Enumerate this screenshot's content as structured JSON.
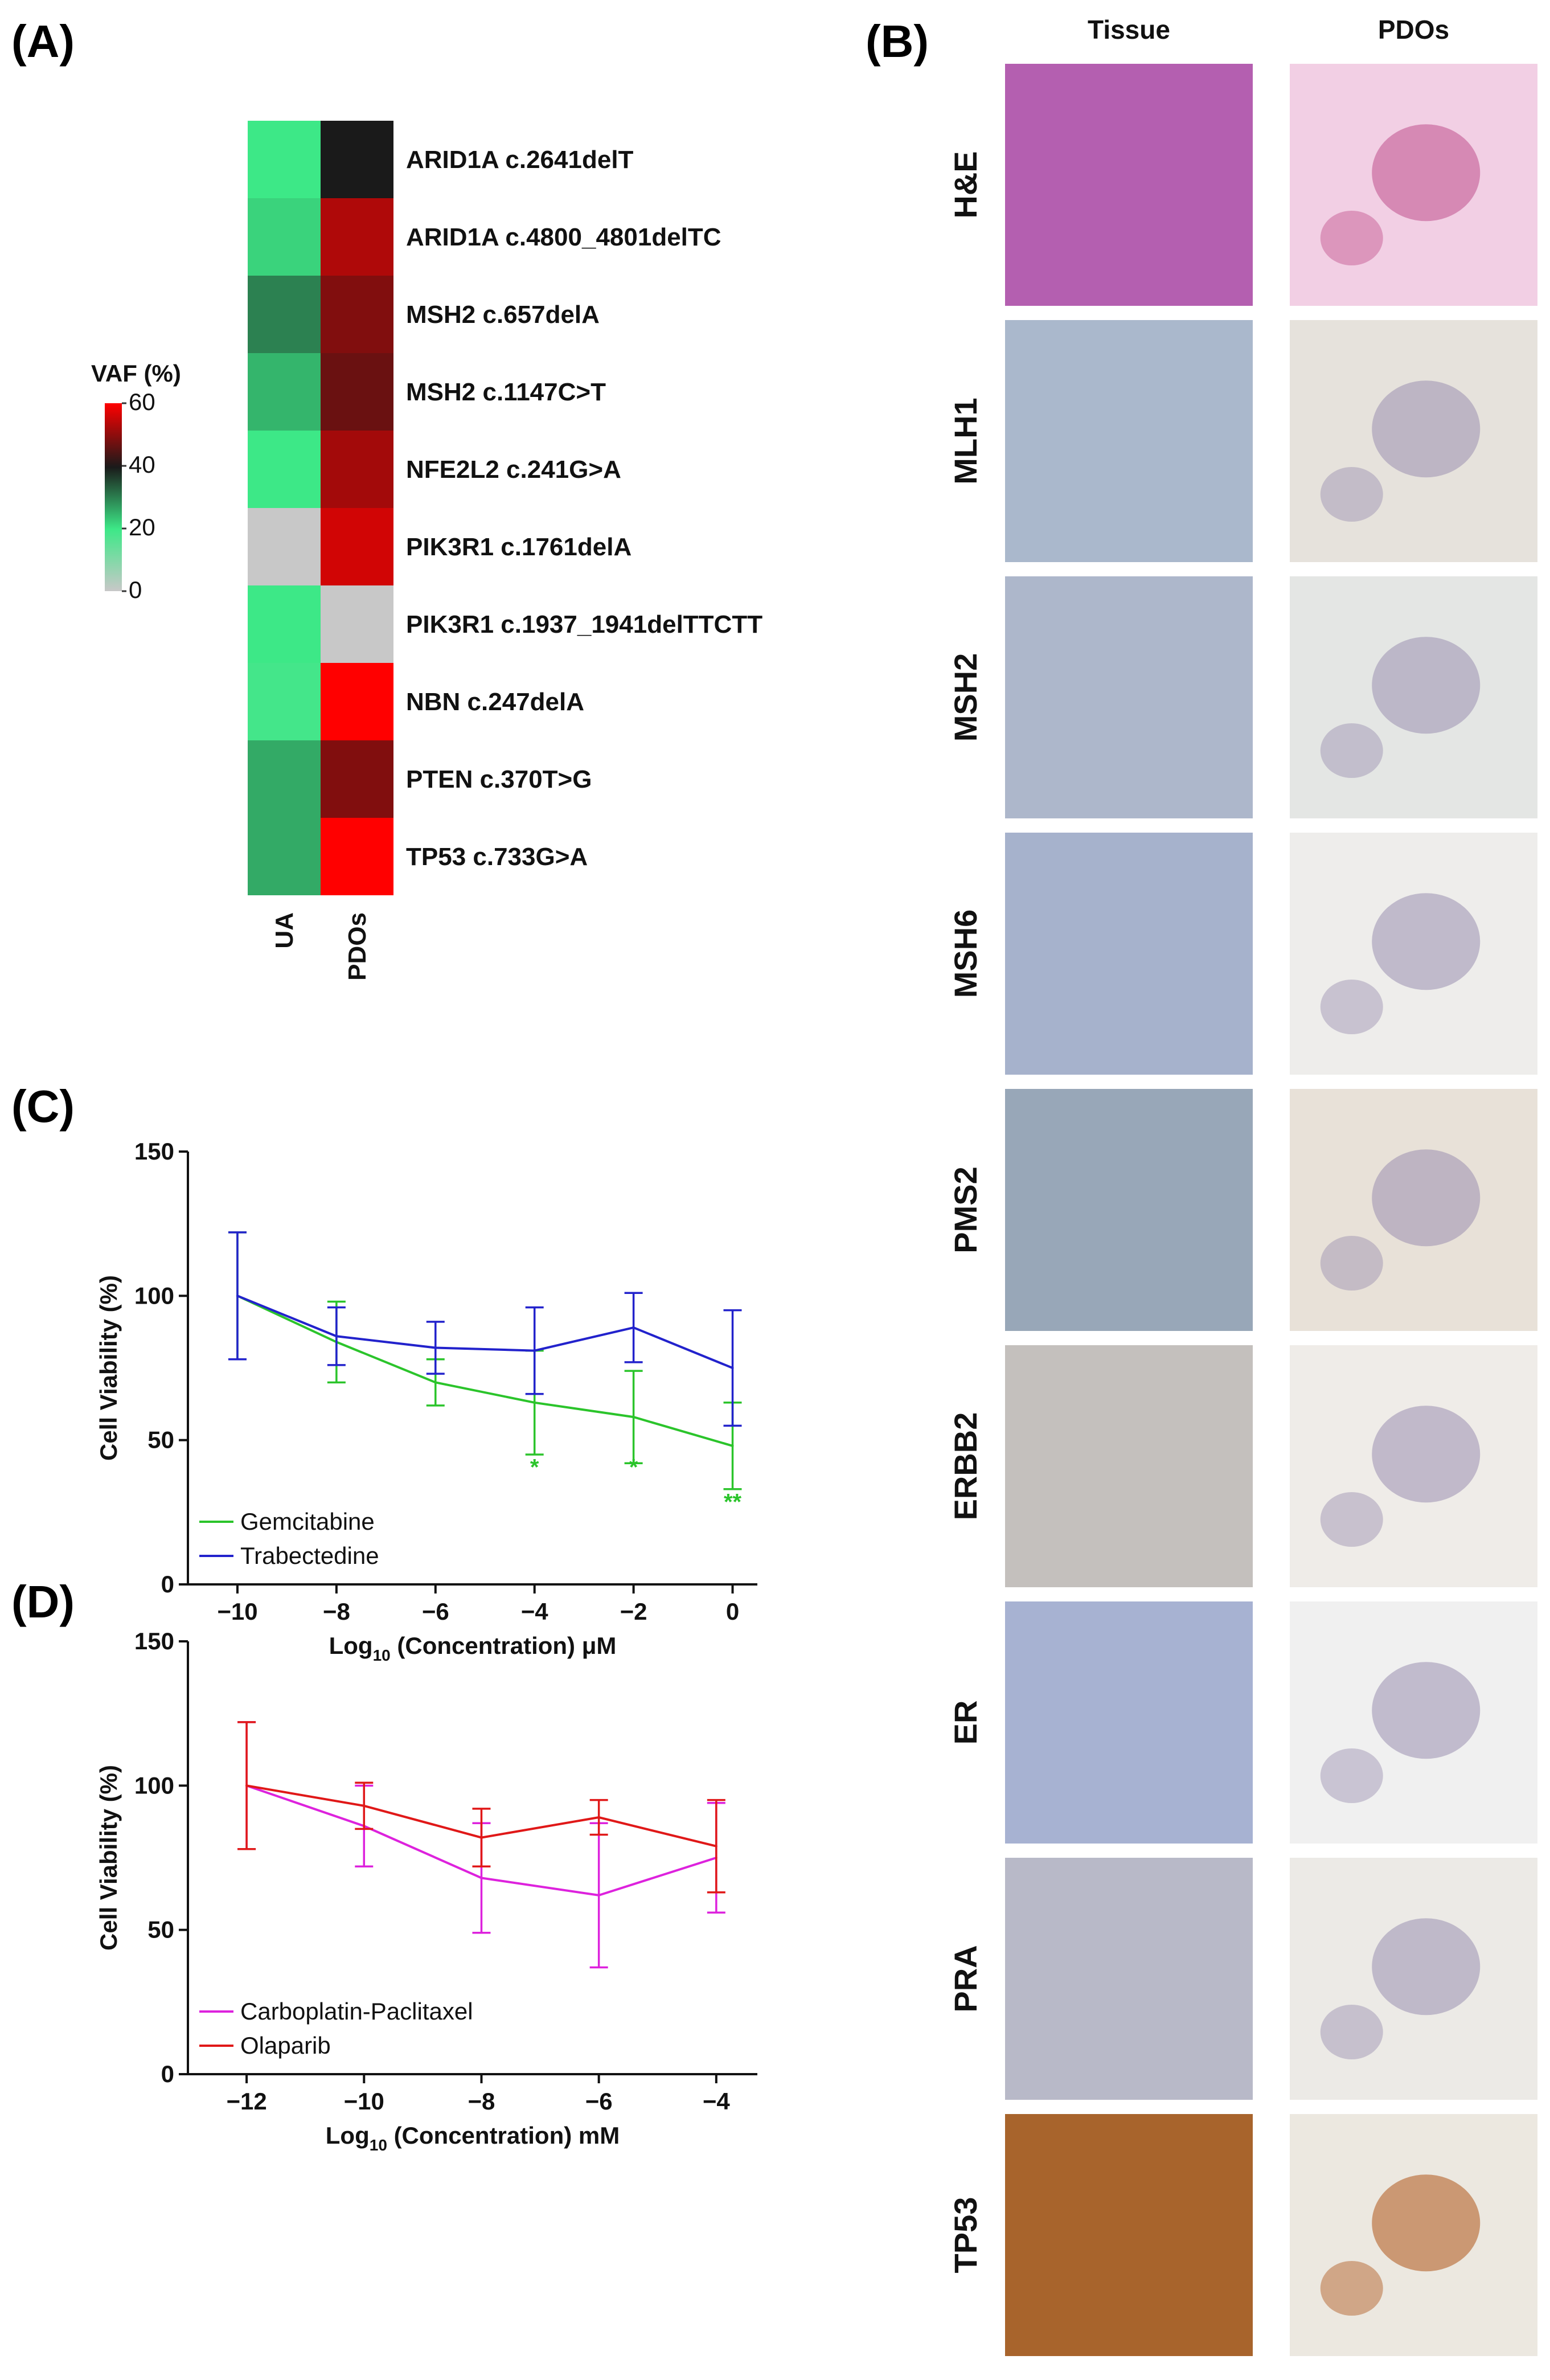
{
  "panels": {
    "a": "(A)",
    "b": "(B)",
    "c": "(C)",
    "d": "(D)"
  },
  "heatmap": {
    "colorbar_title": "VAF (%)",
    "colorbar_ticks": [
      "60",
      "40",
      "20",
      "0"
    ],
    "colorbar_tick_values": [
      60,
      40,
      20,
      0
    ],
    "columns": [
      "UA",
      "PDOs"
    ],
    "rows": [
      {
        "label": "ARID1A c.2641delT",
        "ua": 20,
        "pdos": 40
      },
      {
        "label": "ARID1A c.4800_4801delTC",
        "ua": 22,
        "pdos": 53
      },
      {
        "label": "MSH2 c.657delA",
        "ua": 30,
        "pdos": 49
      },
      {
        "label": "MSH2 c.1147C>T",
        "ua": 25,
        "pdos": 47
      },
      {
        "label": "NFE2L2 c.241G>A",
        "ua": 20,
        "pdos": 52
      },
      {
        "label": "PIK3R1 c.1761delA",
        "ua": 0,
        "pdos": 56
      },
      {
        "label": "PIK3R1 c.1937_1941delTTCTT",
        "ua": 20,
        "pdos": 0
      },
      {
        "label": "NBN c.247delA",
        "ua": 19,
        "pdos": 62
      },
      {
        "label": "PTEN c.370T>G",
        "ua": 26,
        "pdos": 49
      },
      {
        "label": "TP53 c.733G>A",
        "ua": 26,
        "pdos": 62
      }
    ],
    "colors": {
      "zero": "#c8c8c8",
      "low": "#3de887",
      "mid": "#1a1a1a",
      "high": "#ff0000"
    }
  },
  "ihc": {
    "columns": [
      "Tissue",
      "PDOs"
    ],
    "rows": [
      {
        "stain": "H&E",
        "tissue_color": "#b45fb0",
        "pdo_color": "#f2cfe4"
      },
      {
        "stain": "MLH1",
        "tissue_color": "#aab8cc",
        "pdo_color": "#e6e2dc"
      },
      {
        "stain": "MSH2",
        "tissue_color": "#adb7cb",
        "pdo_color": "#e4e6e4"
      },
      {
        "stain": "MSH6",
        "tissue_color": "#a6b2cc",
        "pdo_color": "#eeedeb"
      },
      {
        "stain": "PMS2",
        "tissue_color": "#98a7b8",
        "pdo_color": "#e8e1d8"
      },
      {
        "stain": "ERBB2",
        "tissue_color": "#c4c0bd",
        "pdo_color": "#efece8"
      },
      {
        "stain": "ER",
        "tissue_color": "#a7b2d2",
        "pdo_color": "#f0f0f0"
      },
      {
        "stain": "PRA",
        "tissue_color": "#b8b9c8",
        "pdo_color": "#eceae6"
      },
      {
        "stain": "TP53",
        "tissue_color": "#a8642c",
        "pdo_color": "#ece8e0"
      }
    ]
  },
  "chart_data": [
    {
      "id": "C",
      "type": "line",
      "title": "",
      "xlabel_main": "Log",
      "xlabel_sub": "10",
      "xlabel_rest": " (Concentration) μM",
      "ylabel": "Cell Viability (%)",
      "x": [
        -10,
        -8,
        -6,
        -4,
        -2,
        0
      ],
      "xlim": [
        -11,
        0.5
      ],
      "ylim": [
        0,
        150
      ],
      "yticks": [
        0,
        50,
        100,
        150
      ],
      "xtick_labels": [
        "−10",
        "−8",
        "−6",
        "−4",
        "−2",
        "0"
      ],
      "ytick_labels": [
        "0",
        "50",
        "100",
        "150"
      ],
      "series": [
        {
          "name": "Gemcitabine",
          "color": "#2bc42b",
          "values": [
            100,
            84,
            70,
            63,
            58,
            48
          ],
          "err": [
            22,
            14,
            8,
            18,
            16,
            15
          ]
        },
        {
          "name": "Trabectedine",
          "color": "#2222cc",
          "values": [
            100,
            86,
            82,
            81,
            89,
            75
          ],
          "err": [
            22,
            10,
            9,
            15,
            12,
            20
          ]
        }
      ],
      "annotations": [
        {
          "x": -4,
          "y": 38,
          "text": "*",
          "color": "#2bc42b"
        },
        {
          "x": -2,
          "y": 38,
          "text": "*",
          "color": "#2bc42b"
        },
        {
          "x": 0,
          "y": 26,
          "text": "**",
          "color": "#2bc42b"
        }
      ],
      "legend": "bottom-left"
    },
    {
      "id": "D",
      "type": "line",
      "title": "",
      "xlabel_main": "Log",
      "xlabel_sub": "10",
      "xlabel_rest": " (Concentration) mM",
      "ylabel": "Cell Viability (%)",
      "x": [
        -12,
        -10,
        -8,
        -6,
        -4
      ],
      "xlim": [
        -13,
        -3.3
      ],
      "ylim": [
        0,
        150
      ],
      "yticks": [
        0,
        50,
        100,
        150
      ],
      "xtick_labels": [
        "−12",
        "−10",
        "−8",
        "−6",
        "−4"
      ],
      "ytick_labels": [
        "0",
        "50",
        "100",
        "150"
      ],
      "series": [
        {
          "name": "Carboplatin-Paclitaxel",
          "color": "#dd22dd",
          "values": [
            100,
            86,
            68,
            62,
            75
          ],
          "err": [
            22,
            14,
            19,
            25,
            19
          ]
        },
        {
          "name": "Olaparib",
          "color": "#e01818",
          "values": [
            100,
            93,
            82,
            89,
            79
          ],
          "err": [
            22,
            8,
            10,
            6,
            16
          ]
        }
      ],
      "annotations": [],
      "legend": "bottom-left"
    }
  ]
}
